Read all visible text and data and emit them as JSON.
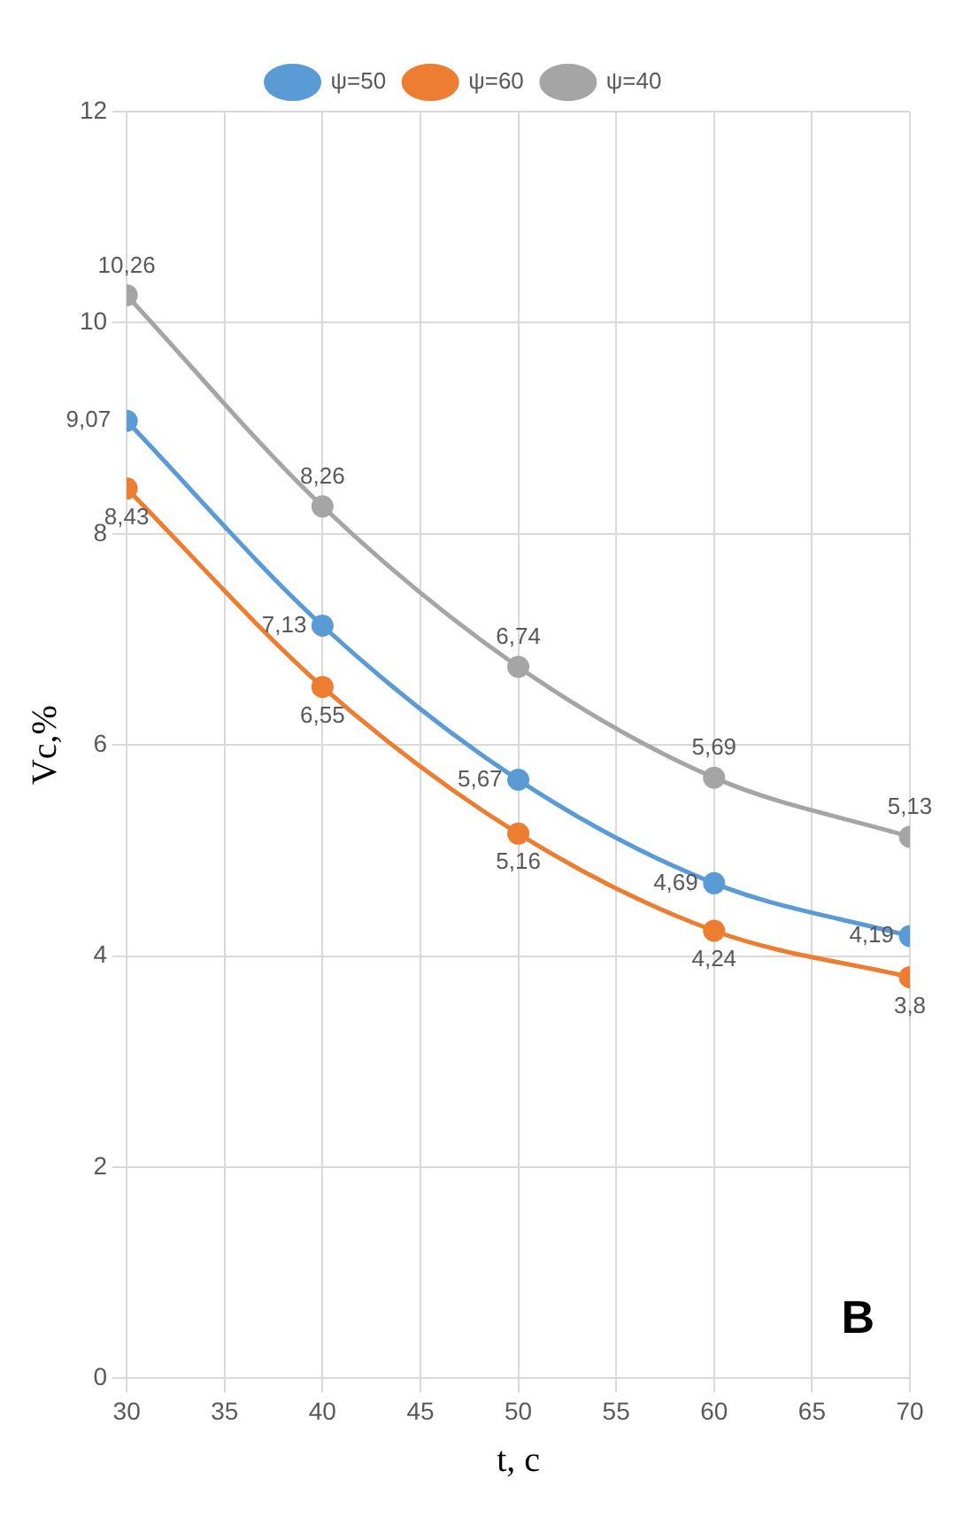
{
  "chart_data": {
    "type": "line",
    "xlabel": "t, c",
    "ylabel": "Vc,%",
    "x": [
      30,
      40,
      50,
      60,
      70
    ],
    "series": [
      {
        "name": "ψ=50",
        "color": "#5b9bd5",
        "values": [
          9.07,
          7.13,
          5.67,
          4.69,
          4.19
        ],
        "value_labels": [
          "9,07",
          "7,13",
          "5,67",
          "4,69",
          "4,19"
        ]
      },
      {
        "name": "ψ=60",
        "color": "#ed7d31",
        "values": [
          8.43,
          6.55,
          5.16,
          4.24,
          3.8
        ],
        "value_labels": [
          "8,43",
          "6,55",
          "5,16",
          "4,24",
          "3,8"
        ]
      },
      {
        "name": "ψ=40",
        "color": "#a5a5a5",
        "values": [
          10.26,
          8.26,
          6.74,
          5.69,
          5.13
        ],
        "value_labels": [
          "10,26",
          "8,26",
          "6,74",
          "5,69",
          "5,13"
        ]
      }
    ],
    "xlim": [
      30,
      70
    ],
    "xticks": [
      30,
      35,
      40,
      45,
      50,
      55,
      60,
      65,
      70
    ],
    "ylim": [
      0,
      12
    ],
    "yticks": [
      0,
      2,
      4,
      6,
      8,
      10,
      12
    ],
    "grid": true,
    "legend": "top",
    "marker": "circle",
    "line_style": "solid",
    "annotations": [
      "В"
    ]
  }
}
